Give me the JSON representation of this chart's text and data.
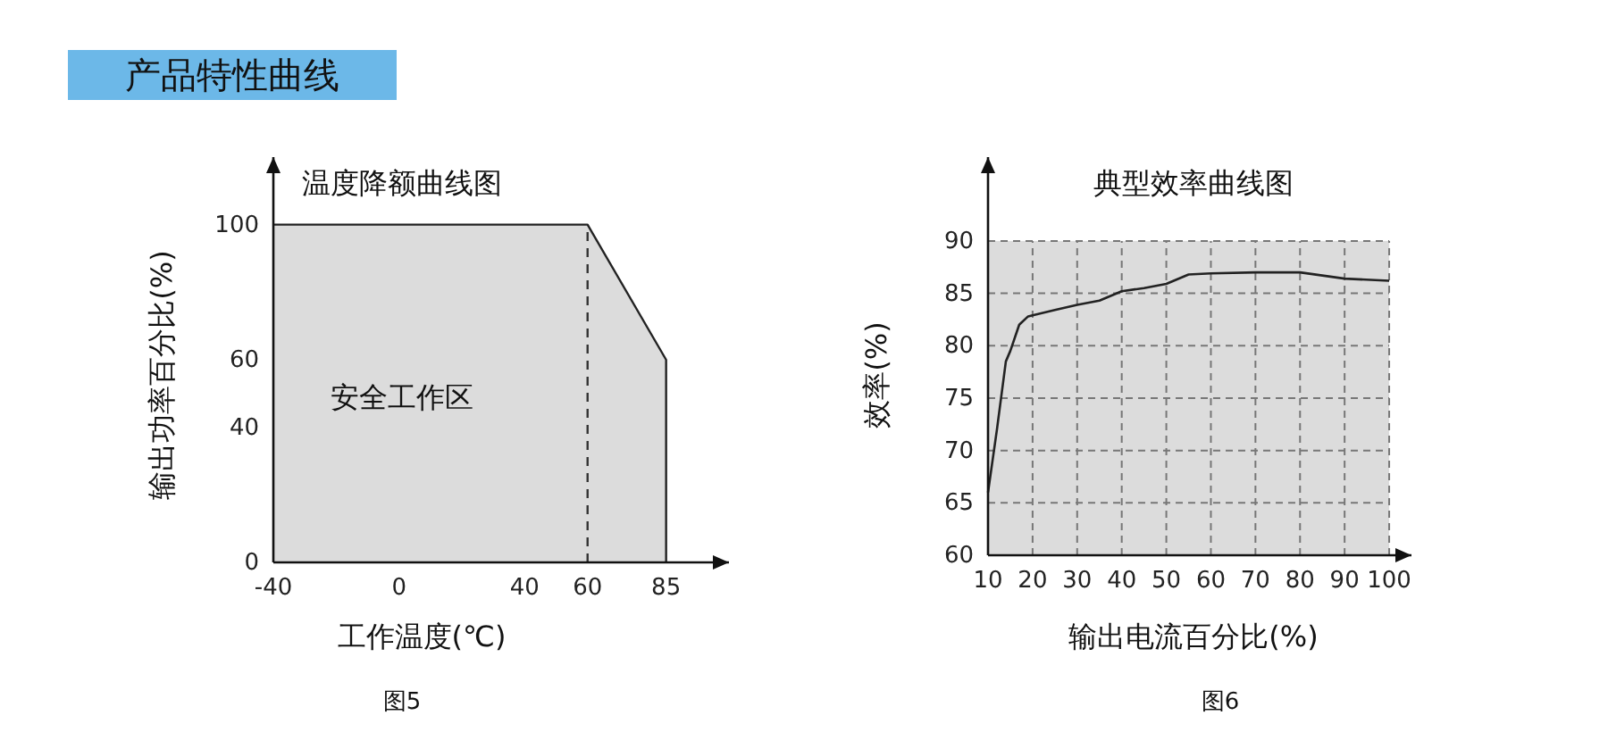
{
  "chart_data": [
    {
      "type": "other",
      "title": "产品特性曲线",
      "color": "#6cb8e8"
    },
    {
      "type": "area",
      "title": "温度降额曲线图",
      "xlabel": "工作温度(℃)",
      "ylabel": "输出功率百分比(%)",
      "annotations": [
        "安全工作区",
        "图5"
      ],
      "series": [
        {
          "color": "#dcdcdc",
          "x": [
            -40,
            60,
            85
          ],
          "values": [
            100,
            100,
            60
          ]
        }
      ],
      "xlim": [
        -40,
        105
      ],
      "xticks": [
        -40,
        0,
        40,
        60,
        85
      ],
      "ylim": [
        0,
        120
      ],
      "yticks": [
        0,
        40,
        60,
        100
      ],
      "ref_lines": [
        {
          "axis": "x",
          "value": 60,
          "line_style": "dashed",
          "color": "#333333"
        }
      ]
    },
    {
      "type": "line",
      "title": "典型效率曲线图",
      "xlabel": "输出电流百分比(%)",
      "ylabel": "效率(%)",
      "annotations": [
        "图6"
      ],
      "series": [
        {
          "color": "#222222",
          "x": [
            10,
            12,
            14,
            15,
            17,
            19,
            20,
            25,
            30,
            35,
            40,
            45,
            50,
            55,
            60,
            70,
            80,
            90,
            100
          ],
          "values": [
            66,
            72,
            78.5,
            79.5,
            82,
            82.8,
            82.9,
            83.4,
            83.9,
            84.3,
            85.2,
            85.5,
            85.9,
            86.8,
            86.9,
            87,
            87,
            86.4,
            86.2
          ]
        }
      ],
      "xlim": [
        10,
        105
      ],
      "xticks": [
        10,
        20,
        30,
        40,
        50,
        60,
        70,
        80,
        90,
        100
      ],
      "ylim": [
        60,
        98
      ],
      "yticks": [
        60,
        65,
        70,
        75,
        80,
        85,
        90
      ],
      "grid": true,
      "line_style": "solid",
      "bands": [
        {
          "axis": "y",
          "from": 60,
          "to": 90,
          "color": "#dcdcdc"
        }
      ]
    }
  ]
}
